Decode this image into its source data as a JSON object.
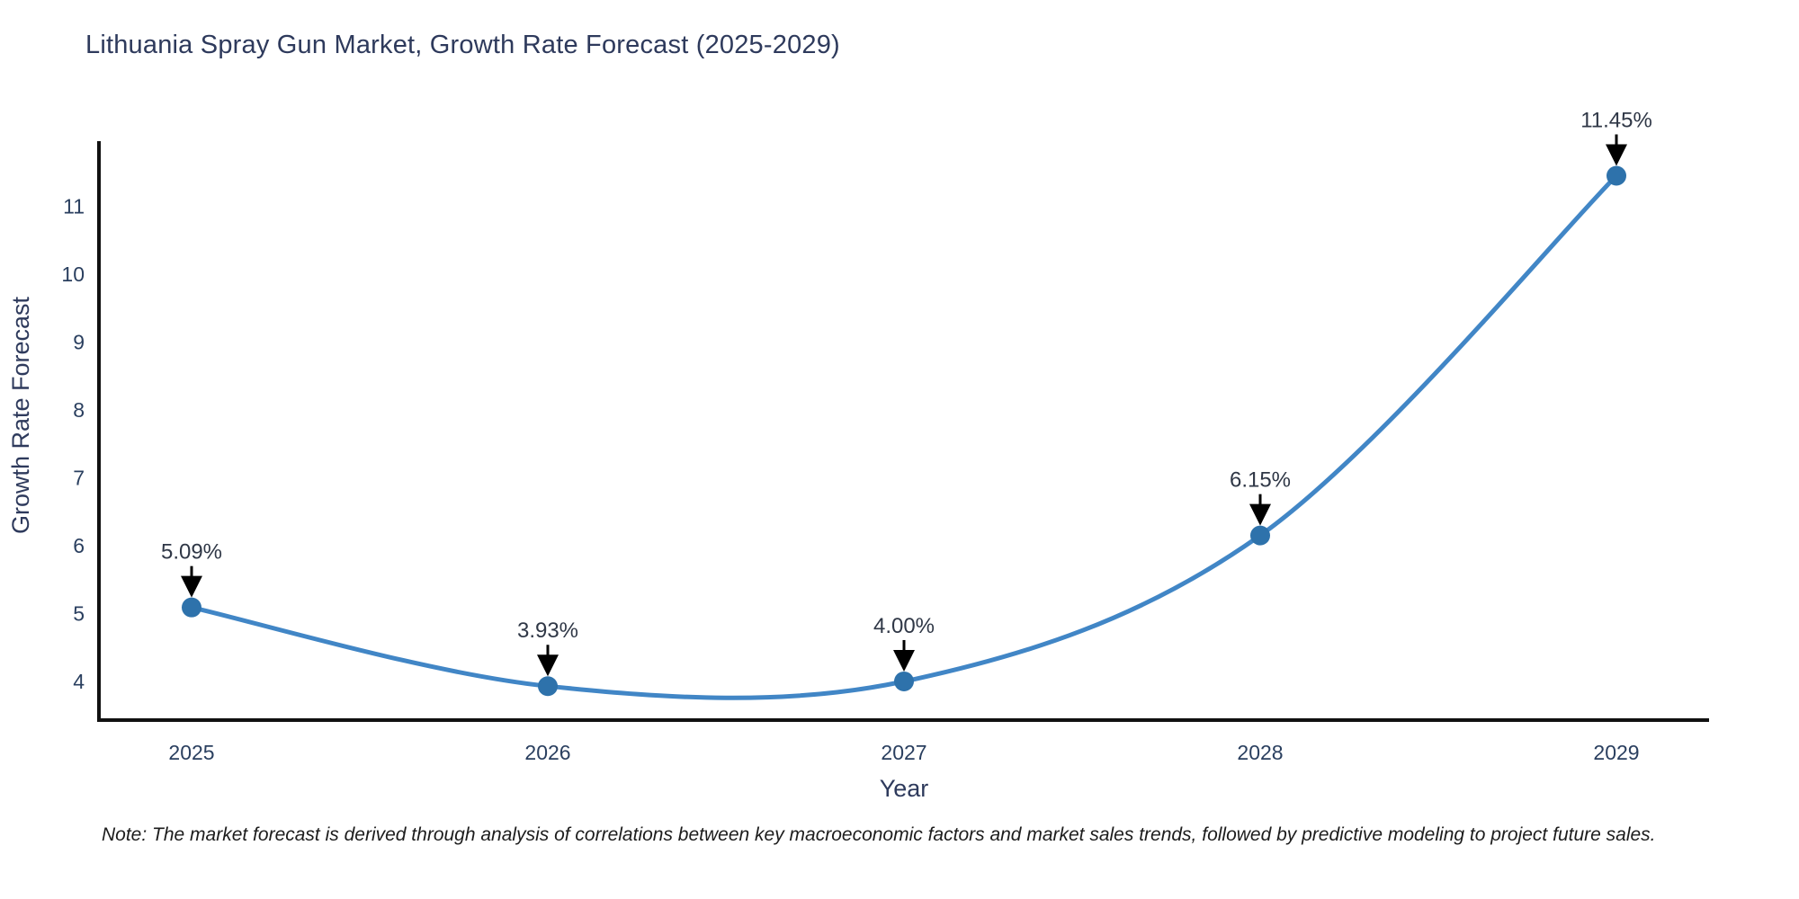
{
  "title": "Lithuania Spray Gun Market, Growth Rate Forecast (2025-2029)",
  "note": "Note: The market forecast is derived through analysis of correlations between key macroeconomic factors and market sales trends, followed by predictive modeling to project future sales.",
  "chart_data": {
    "type": "line",
    "title": "Lithuania Spray Gun Market, Growth Rate Forecast (2025-2029)",
    "xlabel": "Year",
    "ylabel": "Growth Rate Forecast",
    "categories": [
      "2025",
      "2026",
      "2027",
      "2028",
      "2029"
    ],
    "series": [
      {
        "name": "Growth Rate Forecast",
        "values": [
          5.09,
          3.93,
          4.0,
          6.15,
          11.45
        ]
      }
    ],
    "point_labels": [
      "5.09%",
      "3.93%",
      "4.00%",
      "6.15%",
      "11.45%"
    ],
    "yticks": [
      4,
      5,
      6,
      7,
      8,
      9,
      10,
      11
    ],
    "ylim": [
      3.43,
      11.92
    ],
    "grid": false,
    "legend": "none",
    "line_shape": "spline",
    "annotations_have_arrows": true,
    "colors": {
      "line": "#4186c6",
      "marker": "#2e72ab",
      "axis": "#111111",
      "tick_text": "#2a3f5f",
      "axis_title_text": "#2e3a5c",
      "annotation_text": "#2f3746",
      "arrow": "#000000"
    }
  }
}
